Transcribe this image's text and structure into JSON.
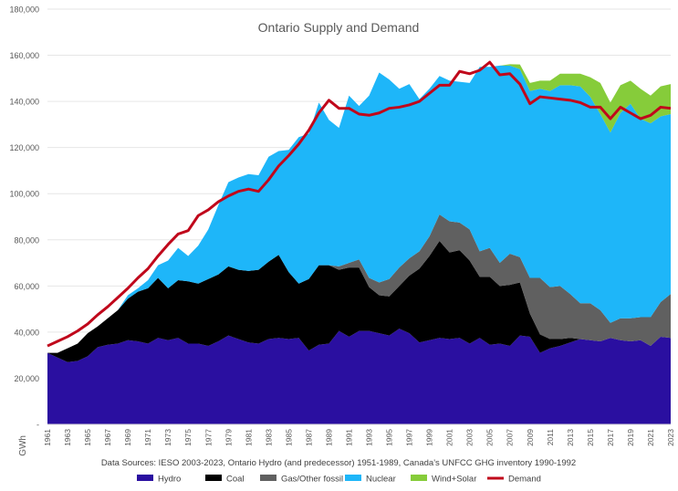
{
  "chart_data": {
    "type": "area",
    "title": "Ontario Supply and Demand",
    "ylabel": "GWh",
    "ylim": [
      0,
      180000
    ],
    "yticks": [
      "-",
      "20,000",
      "40,000",
      "60,000",
      "80,000",
      "100,000",
      "120,000",
      "140,000",
      "160,000",
      "180,000"
    ],
    "x": [
      1961,
      1962,
      1963,
      1964,
      1965,
      1966,
      1967,
      1968,
      1969,
      1970,
      1971,
      1972,
      1973,
      1974,
      1975,
      1976,
      1977,
      1978,
      1979,
      1980,
      1981,
      1982,
      1983,
      1984,
      1985,
      1986,
      1987,
      1988,
      1989,
      1990,
      1991,
      1992,
      1993,
      1994,
      1995,
      1996,
      1997,
      1998,
      1999,
      2000,
      2001,
      2002,
      2003,
      2004,
      2005,
      2006,
      2007,
      2008,
      2009,
      2010,
      2011,
      2012,
      2013,
      2014,
      2015,
      2016,
      2017,
      2018,
      2019,
      2020,
      2021,
      2022,
      2023
    ],
    "xtick_labels": [
      "1961",
      "1963",
      "1965",
      "1967",
      "1969",
      "1971",
      "1973",
      "1975",
      "1977",
      "1979",
      "1981",
      "1983",
      "1985",
      "1987",
      "1989",
      "1991",
      "1993",
      "1995",
      "1997",
      "1999",
      "2001",
      "2003",
      "2005",
      "2007",
      "2009",
      "2011",
      "2013",
      "2015",
      "2017",
      "2019",
      "2021",
      "2023"
    ],
    "series": [
      {
        "name": "Hydro",
        "kind": "stack",
        "color": "#2a0fa0",
        "values": [
          31000,
          29000,
          27000,
          27500,
          29500,
          33500,
          34500,
          35000,
          36500,
          36000,
          35000,
          37500,
          36500,
          37500,
          35000,
          35000,
          34000,
          36000,
          38500,
          37000,
          35500,
          35000,
          37000,
          37500,
          37000,
          37500,
          32000,
          34500,
          35000,
          40500,
          38000,
          40500,
          40500,
          39500,
          38500,
          41500,
          39500,
          35500,
          36500,
          37500,
          37000,
          37500,
          35000,
          37500,
          34500,
          35000,
          34000,
          38500,
          38000,
          31000,
          33000,
          34000,
          35500,
          37000,
          36500,
          36000,
          37500,
          36500,
          36000,
          36500,
          34000,
          38000,
          37500
        ]
      },
      {
        "name": "Coal",
        "kind": "stack",
        "color": "#000000",
        "values": [
          0,
          2000,
          6000,
          7500,
          10000,
          9000,
          11500,
          14500,
          18000,
          21500,
          24000,
          26000,
          22500,
          25000,
          27000,
          26000,
          29000,
          29000,
          30000,
          30000,
          31000,
          32000,
          33500,
          36000,
          29000,
          23500,
          31000,
          34500,
          34000,
          26500,
          30000,
          27500,
          19000,
          16500,
          17000,
          18500,
          25000,
          32000,
          36500,
          42000,
          37500,
          38000,
          36000,
          26500,
          29500,
          25000,
          26500,
          23000,
          10000,
          8000,
          4000,
          3000,
          2000,
          0,
          0,
          0,
          0,
          0,
          0,
          0,
          0,
          0,
          0
        ]
      },
      {
        "name": "Gas/Other fossil",
        "kind": "stack",
        "color": "#606060",
        "values": [
          0,
          0,
          0,
          0,
          0,
          0,
          0,
          0,
          0,
          0,
          0,
          0,
          0,
          0,
          0,
          0,
          0,
          0,
          0,
          0,
          0,
          0,
          0,
          0,
          0,
          0,
          0,
          0,
          0,
          1500,
          2000,
          3500,
          4000,
          5500,
          7500,
          8000,
          7500,
          7500,
          8500,
          11500,
          13500,
          12000,
          13500,
          11000,
          12500,
          10000,
          13500,
          11000,
          15500,
          24500,
          22500,
          23000,
          19000,
          15500,
          16000,
          13500,
          6500,
          9500,
          10000,
          10000,
          12500,
          15000,
          19000
        ]
      },
      {
        "name": "Nuclear",
        "kind": "stack",
        "color": "#1eb6f9",
        "values": [
          0,
          0,
          0,
          0,
          0,
          0,
          0,
          0,
          1500,
          1500,
          3500,
          5500,
          12000,
          14000,
          11000,
          16500,
          21500,
          30000,
          36500,
          40000,
          42000,
          41000,
          45500,
          45000,
          53000,
          63500,
          63000,
          70500,
          63000,
          60000,
          72500,
          66500,
          79000,
          91000,
          86500,
          77500,
          75500,
          66000,
          64000,
          60000,
          61000,
          61000,
          63500,
          80000,
          78500,
          85500,
          81500,
          81500,
          81000,
          82000,
          85000,
          87000,
          90500,
          94000,
          89500,
          85000,
          82500,
          89000,
          93000,
          86000,
          84000,
          80500,
          78000
        ]
      },
      {
        "name": "Wind+Solar",
        "kind": "stack",
        "color": "#86cc3a",
        "values": [
          0,
          0,
          0,
          0,
          0,
          0,
          0,
          0,
          0,
          0,
          0,
          0,
          0,
          0,
          0,
          0,
          0,
          0,
          0,
          0,
          0,
          0,
          0,
          0,
          0,
          0,
          0,
          0,
          0,
          0,
          0,
          0,
          0,
          0,
          0,
          0,
          0,
          0,
          0,
          0,
          0,
          0,
          0,
          0,
          0,
          0,
          600,
          2000,
          3500,
          3500,
          4500,
          5000,
          5000,
          5500,
          8500,
          13500,
          13000,
          12000,
          10000,
          13000,
          12000,
          13000,
          13000
        ]
      },
      {
        "name": "Demand",
        "kind": "line",
        "color": "#c0071b",
        "values": [
          34000,
          36000,
          38000,
          40500,
          43500,
          47500,
          51000,
          55000,
          59000,
          63500,
          67500,
          73000,
          78000,
          82500,
          84000,
          90500,
          93000,
          96500,
          99000,
          101000,
          102000,
          101000,
          106000,
          112000,
          116500,
          121500,
          127500,
          135000,
          140500,
          137000,
          137000,
          134500,
          134000,
          135000,
          137000,
          137500,
          138500,
          140000,
          143500,
          147000,
          147000,
          153000,
          152000,
          153500,
          157000,
          151500,
          152000,
          147500,
          139000,
          142000,
          141500,
          141000,
          140500,
          139500,
          137500,
          137500,
          132500,
          137500,
          135000,
          132500,
          134000,
          137500,
          137000
        ]
      }
    ],
    "source_note": "Data Sources: IESO 2003-2023, Ontario Hydro (and predecessor) 1951-1989, Canada's UNFCC GHG inventory 1990-1992",
    "legend": {
      "placement": "bottom"
    },
    "grid": true
  }
}
